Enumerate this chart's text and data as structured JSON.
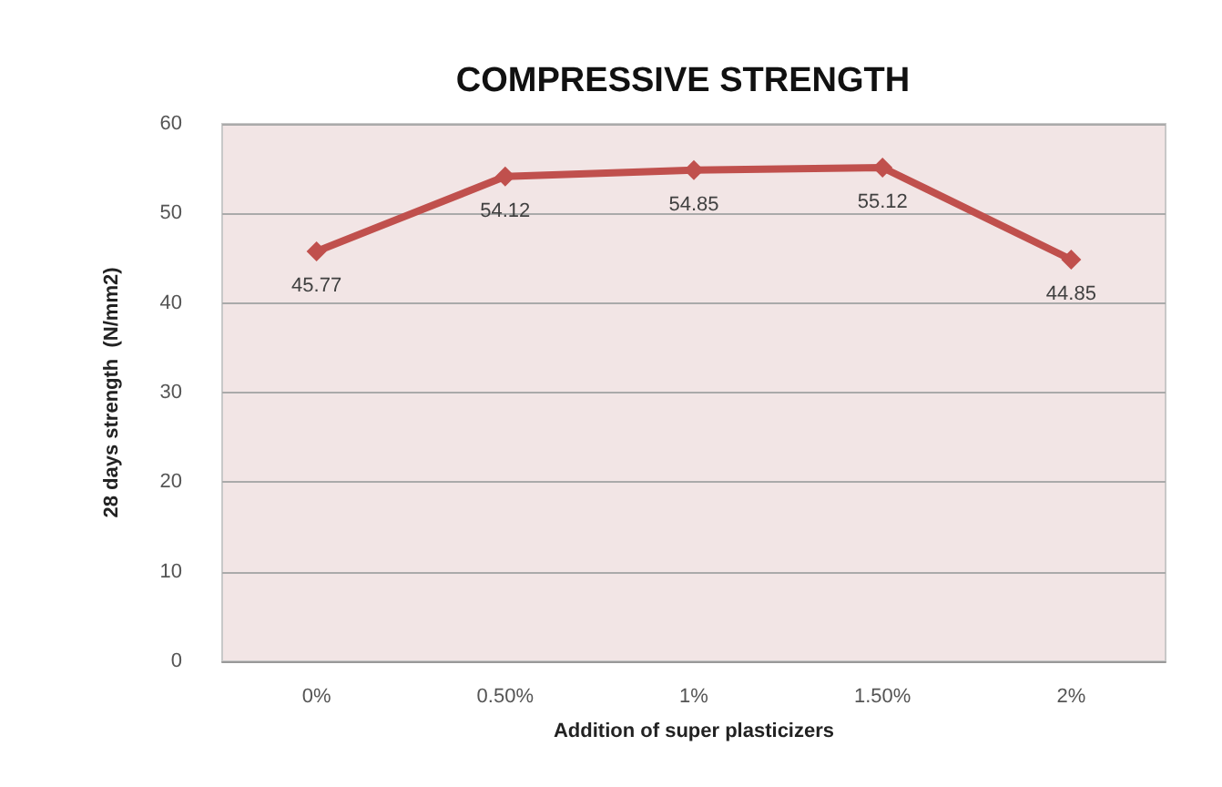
{
  "chart_data": {
    "type": "line",
    "title": "COMPRESSIVE STRENGTH",
    "xlabel": "Addition of super plasticizers",
    "ylabel": "28 days strength  (N/mm2)",
    "categories": [
      "0%",
      "0.50%",
      "1%",
      "1.50%",
      "2%"
    ],
    "series": [
      {
        "color": "#c0504d",
        "values": [
          45.77,
          54.12,
          54.85,
          55.12,
          44.85
        ]
      }
    ],
    "ylim": [
      0,
      60
    ],
    "yticks": [
      0,
      10,
      20,
      30,
      40,
      50,
      60
    ],
    "grid": "y",
    "marker": "diamond",
    "data_labels": true
  }
}
